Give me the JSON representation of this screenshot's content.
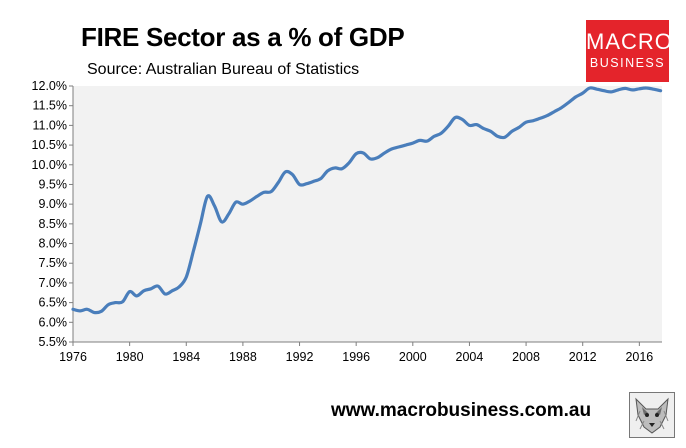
{
  "title": "FIRE Sector as a % of GDP",
  "subtitle": "Source: Australian Bureau of Statistics",
  "brand": {
    "line1": "MACRO",
    "line2": "BUSINESS",
    "color": "#e4242b"
  },
  "website": "www.macrobusiness.com.au",
  "colors": {
    "series": "#4a7ebb",
    "plot_bg": "#f2f2f2"
  },
  "chart_data": {
    "type": "line",
    "title": "FIRE Sector as a % of GDP",
    "subtitle": "Source: Australian Bureau of Statistics",
    "xlabel": "",
    "ylabel": "",
    "xlim": [
      1976,
      2017.6
    ],
    "ylim": [
      5.5,
      12.0
    ],
    "x_ticks": [
      1976,
      1980,
      1984,
      1988,
      1992,
      1996,
      2000,
      2004,
      2008,
      2012,
      2016
    ],
    "y_ticks": [
      5.5,
      6.0,
      6.5,
      7.0,
      7.5,
      8.0,
      8.5,
      9.0,
      9.5,
      10.0,
      10.5,
      11.0,
      11.5,
      12.0
    ],
    "y_tick_labels": [
      "5.5%",
      "6.0%",
      "6.5%",
      "7.0%",
      "7.5%",
      "8.0%",
      "8.5%",
      "9.0%",
      "9.5%",
      "10.0%",
      "10.5%",
      "11.0%",
      "11.5%",
      "12.0%"
    ],
    "grid": false,
    "legend": "none",
    "x": [
      1976.0,
      1976.5,
      1977.0,
      1977.5,
      1978.0,
      1978.5,
      1979.0,
      1979.5,
      1980.0,
      1980.5,
      1981.0,
      1981.5,
      1982.0,
      1982.5,
      1983.0,
      1983.5,
      1984.0,
      1984.5,
      1985.0,
      1985.5,
      1986.0,
      1986.5,
      1987.0,
      1987.5,
      1988.0,
      1988.5,
      1989.0,
      1989.5,
      1990.0,
      1990.5,
      1991.0,
      1991.5,
      1992.0,
      1992.5,
      1993.0,
      1993.5,
      1994.0,
      1994.5,
      1995.0,
      1995.5,
      1996.0,
      1996.5,
      1997.0,
      1997.5,
      1998.0,
      1998.5,
      1999.0,
      1999.5,
      2000.0,
      2000.5,
      2001.0,
      2001.5,
      2002.0,
      2002.5,
      2003.0,
      2003.5,
      2004.0,
      2004.5,
      2005.0,
      2005.5,
      2006.0,
      2006.5,
      2007.0,
      2007.5,
      2008.0,
      2008.5,
      2009.0,
      2009.5,
      2010.0,
      2010.5,
      2011.0,
      2011.5,
      2012.0,
      2012.5,
      2013.0,
      2013.5,
      2014.0,
      2014.5,
      2015.0,
      2015.5,
      2016.0,
      2016.5,
      2017.0,
      2017.5
    ],
    "series": [
      {
        "values": [
          6.33,
          6.29,
          6.33,
          6.25,
          6.28,
          6.45,
          6.5,
          6.52,
          6.78,
          6.67,
          6.8,
          6.85,
          6.92,
          6.72,
          6.8,
          6.9,
          7.15,
          7.8,
          8.5,
          9.2,
          8.95,
          8.55,
          8.75,
          9.05,
          9.0,
          9.08,
          9.2,
          9.3,
          9.32,
          9.55,
          9.82,
          9.75,
          9.5,
          9.52,
          9.58,
          9.65,
          9.85,
          9.92,
          9.9,
          10.05,
          10.28,
          10.3,
          10.15,
          10.18,
          10.3,
          10.4,
          10.45,
          10.5,
          10.55,
          10.62,
          10.6,
          10.72,
          10.8,
          10.98,
          11.2,
          11.15,
          11.0,
          11.02,
          10.92,
          10.85,
          10.72,
          10.7,
          10.85,
          10.95,
          11.08,
          11.12,
          11.18,
          11.25,
          11.35,
          11.45,
          11.58,
          11.72,
          11.82,
          11.95,
          11.92,
          11.88,
          11.85,
          11.9,
          11.94,
          11.9,
          11.93,
          11.95,
          11.92,
          11.88
        ]
      }
    ]
  }
}
